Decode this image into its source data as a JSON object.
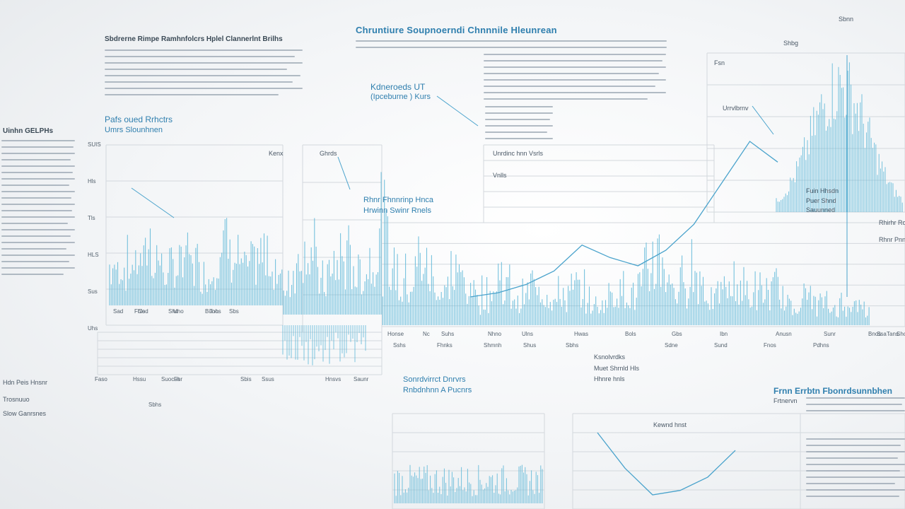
{
  "header": {
    "main_title": "Chruntiure Soupnoerndi Chnnnile Hleunrean",
    "left_title": "Sbdrerne Rimpe Ramhnfolcrs Hplel Clannerlnt Brilhs",
    "left_sub_title": "Pafs oued Rrhctrs",
    "left_sub_sub": "Umrs Slounhnen"
  },
  "left_panel": {
    "title": "Uinhn GELPHs"
  },
  "labels": {
    "key_label": "Kdneroeds UT",
    "key_sub": "(Ipceburne ) Kurs",
    "bundle_label": "Unrdinc hnn Vsrls",
    "bundle_sub": "Vnlls",
    "mid_label": "Rhnr Fhnnrinp Hnca",
    "mid_sub": "Hrwinn Swinr Rnels",
    "top_right": "Sbnn",
    "top_right_2": "Shbg",
    "right_peak": "Urrvlbrnv",
    "right_fin": "Fuin Hhsdn",
    "right_fin_2": "Puer Shnd",
    "right_fin_3": "Sauunned",
    "right_tiny": "Rhirhr Ronr",
    "right_tiny_2": "Rhnr Pnn",
    "fsn": "Fsn",
    "left_kinx": "Kenx",
    "left_ghrds": "Ghrds",
    "kand_1": "Ksnolvrdks",
    "kand_2": "Muet Shrnld Hls",
    "kand_3": "Hhnre hnls",
    "bottom_mid_title": "Sonrdvirrct Dnrvrs",
    "bottom_mid_sub": "Rnbdnhnn A Pucnrs",
    "bottom_right_title": "Frnn Errbtn Fbonrdsunnbhen",
    "bottom_right_sub": "Frtnervn",
    "bottom_chart_label": "Kewnd hnst",
    "bottom_left_1": "Hdn Peis Hnsnr",
    "bottom_left_2": "Trosnuuo",
    "bottom_left_3": "Slow Ganrsnes",
    "bottom_sbhs": "Sbhs"
  },
  "y_ticks_left": [
    "SUIS",
    "Hls",
    "Tls",
    "HLS",
    "Sus",
    "Uhs"
  ],
  "x_ticks_top": [
    "Sad",
    "Cod",
    "Uho",
    "Toh",
    "Sbs",
    "Fhls",
    "Sho",
    "Bunos"
  ],
  "x_ticks_mid": [
    "Honse",
    "Nc",
    "Suhs",
    "Nhno",
    "Ulns",
    "Hwas",
    "Bols",
    "Gbs",
    "Ibn",
    "Anusn",
    "Sunr",
    "Bnos",
    "Tans",
    "Shcs",
    "Ssa"
  ],
  "x_ticks_mid_2": [
    "Sshs",
    "Fhnks",
    "Shmnh",
    "Shus",
    "Sbhs",
    "Sdne",
    "Sund",
    "Fnos",
    "Pdhns"
  ],
  "x_ticks_bottom_left": [
    "Faso",
    "Hssu",
    "Suocus",
    "Sbis",
    "Ssus",
    "Hnsvs",
    "Saunr",
    "Fhr"
  ],
  "colors": {
    "accent": "#5fb8d8",
    "line": "#4aa3cc",
    "grid": "#d3d8dd"
  },
  "chart_data": [
    {
      "type": "line",
      "title": "",
      "series": [
        {
          "x": [
            1,
            2,
            3,
            4,
            5,
            6,
            7,
            8,
            9,
            10,
            11,
            12,
            13,
            14,
            15,
            16,
            17,
            18,
            19,
            20,
            21,
            22,
            23,
            24,
            25,
            26,
            27,
            28,
            29,
            30,
            31,
            32,
            33,
            34,
            35,
            36,
            37,
            38,
            39,
            40
          ],
          "y": [
            40,
            38,
            62,
            30,
            55,
            28,
            70,
            35,
            50,
            25,
            78,
            32,
            60,
            40,
            85,
            45,
            66,
            38,
            52,
            30,
            48,
            22,
            44,
            28,
            36,
            18,
            40,
            30,
            72,
            34,
            58,
            26,
            46,
            30,
            38,
            20,
            30,
            16,
            24,
            12
          ]
        }
      ]
    },
    {
      "type": "line",
      "title": "",
      "series": [
        {
          "x": [
            1,
            2,
            3,
            4,
            5,
            6,
            7,
            8,
            9,
            10,
            11,
            12
          ],
          "y": [
            10,
            14,
            22,
            35,
            60,
            48,
            40,
            55,
            80,
            120,
            160,
            140
          ]
        }
      ]
    },
    {
      "type": "line",
      "title": "",
      "series": [
        {
          "x": [
            1,
            2,
            3,
            4,
            5,
            6
          ],
          "y": [
            90,
            50,
            20,
            25,
            40,
            70
          ]
        }
      ]
    }
  ]
}
